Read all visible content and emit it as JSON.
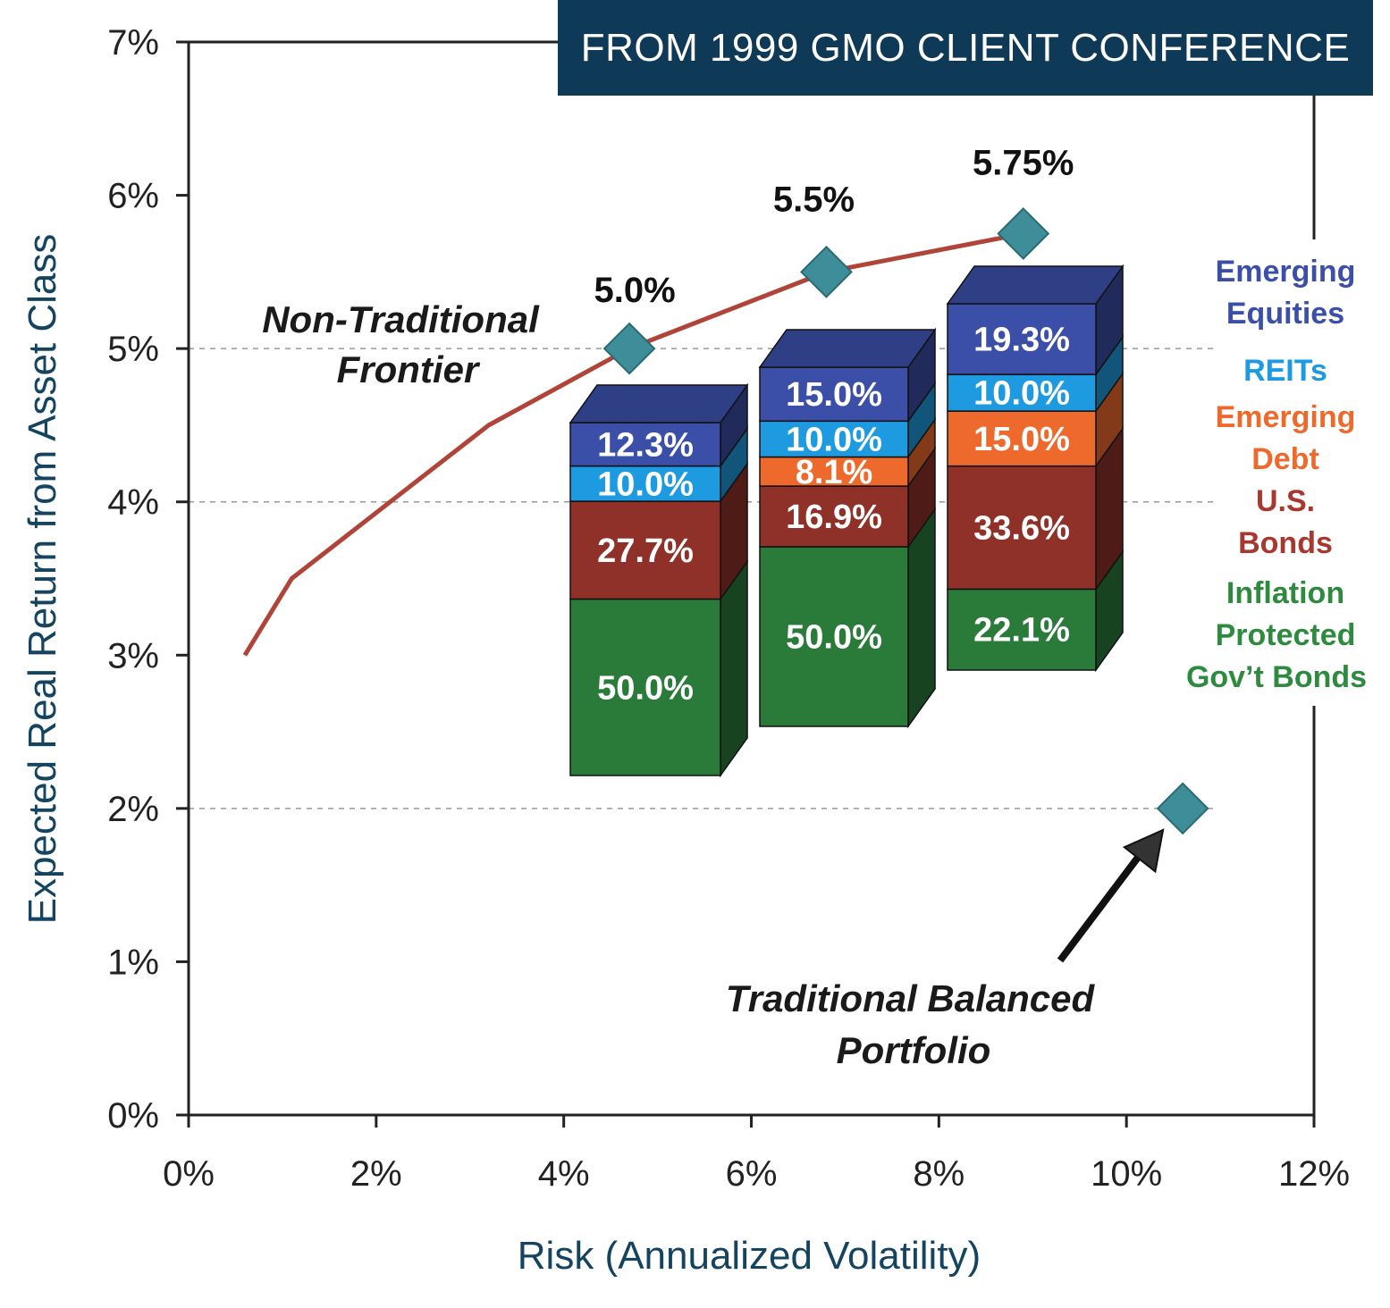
{
  "banner": "FROM 1999 GMO CLIENT CONFERENCE",
  "chart_data": {
    "type": "line",
    "xlabel": "Risk (Annualized Volatility)",
    "ylabel": "Expected Real Return from Asset Class",
    "xlim": [
      0,
      12
    ],
    "ylim": [
      0,
      7
    ],
    "x_ticks": [
      "0%",
      "2%",
      "4%",
      "6%",
      "8%",
      "10%",
      "12%"
    ],
    "y_ticks": [
      "0%",
      "1%",
      "2%",
      "3%",
      "4%",
      "5%",
      "6%",
      "7%"
    ],
    "gridlines_y": [
      2,
      4,
      5
    ],
    "frontier": {
      "x": [
        0.6,
        1.1,
        3.2,
        4.7,
        6.8,
        8.9
      ],
      "y": [
        3.0,
        3.5,
        4.5,
        5.0,
        5.5,
        5.75
      ]
    },
    "points": [
      {
        "x": 4.7,
        "y": 5.0,
        "label": "5.0%"
      },
      {
        "x": 6.8,
        "y": 5.5,
        "label": "5.5%"
      },
      {
        "x": 8.9,
        "y": 5.75,
        "label": "5.75%"
      },
      {
        "x": 10.6,
        "y": 2.0,
        "label": ""
      }
    ],
    "annotations": {
      "frontier_line1": "Non-Traditional",
      "frontier_line2": "Frontier",
      "traditional_line1": "Traditional Balanced",
      "traditional_line2": "Portfolio"
    },
    "legend": [
      {
        "lines": [
          "Emerging",
          "Equities"
        ],
        "color": "#3b4fa8"
      },
      {
        "lines": [
          "REITs"
        ],
        "color": "#1e9be0"
      },
      {
        "lines": [
          "Emerging",
          "Debt"
        ],
        "color": "#ee6a2c"
      },
      {
        "lines": [
          "U.S.",
          "Bonds"
        ],
        "color": "#a8372e"
      },
      {
        "lines": [
          "Inflation",
          "Protected",
          "Gov’t Bonds"
        ],
        "color": "#2e8a3e"
      }
    ],
    "stacks": [
      {
        "portfolio": "5.0%",
        "segments": [
          {
            "class": "Inflation Protected Gov’t Bonds",
            "value": 50.0,
            "label": "50.0%"
          },
          {
            "class": "U.S. Bonds",
            "value": 27.7,
            "label": "27.7%"
          },
          {
            "class": "REITs",
            "value": 10.0,
            "label": "10.0%"
          },
          {
            "class": "Emerging Equities",
            "value": 12.3,
            "label": "12.3%"
          }
        ]
      },
      {
        "portfolio": "5.5%",
        "segments": [
          {
            "class": "Inflation Protected Gov’t Bonds",
            "value": 50.0,
            "label": "50.0%"
          },
          {
            "class": "U.S. Bonds",
            "value": 16.9,
            "label": "16.9%"
          },
          {
            "class": "Emerging Debt",
            "value": 8.1,
            "label": "8.1%"
          },
          {
            "class": "REITs",
            "value": 10.0,
            "label": "10.0%"
          },
          {
            "class": "Emerging Equities",
            "value": 15.0,
            "label": "15.0%"
          }
        ]
      },
      {
        "portfolio": "5.75%",
        "segments": [
          {
            "class": "Inflation Protected Gov’t Bonds",
            "value": 22.1,
            "label": "22.1%"
          },
          {
            "class": "U.S. Bonds",
            "value": 33.6,
            "label": "33.6%"
          },
          {
            "class": "Emerging Debt",
            "value": 15.0,
            "label": "15.0%"
          },
          {
            "class": "REITs",
            "value": 10.0,
            "label": "10.0%"
          },
          {
            "class": "Emerging Equities",
            "value": 19.3,
            "label": "19.3%"
          }
        ]
      }
    ],
    "colors": {
      "frontier_line": "#b04438",
      "marker": "#3d8e99",
      "Emerging Equities": "#3b4fa8",
      "REITs": "#1e9be0",
      "Emerging Debt": "#ee6a2c",
      "U.S. Bonds": "#8f3128",
      "Inflation Protected Gov’t Bonds": "#2a7a3a"
    }
  }
}
